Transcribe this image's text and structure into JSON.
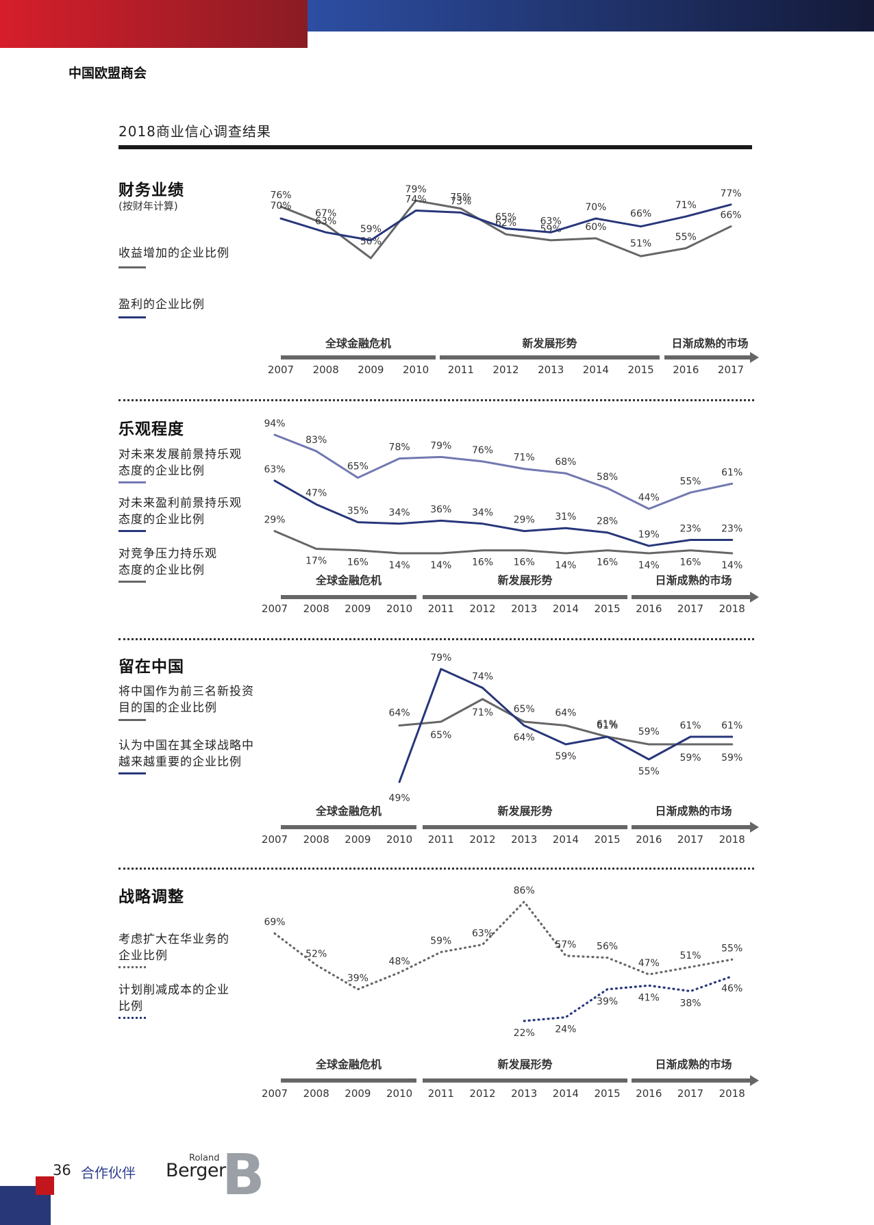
{
  "header": {
    "org": "中国欧盟商会",
    "page_title": "2018商业信心调查结果"
  },
  "colors": {
    "grey": "#666666",
    "navy": "#27367a",
    "lavender": "#7278b0",
    "red": "#d61e2b"
  },
  "chart_data": [
    {
      "type": "line",
      "title": "财务业绩",
      "subtitle": "(按财年计算)",
      "x": [
        "2007",
        "2008",
        "2009",
        "2010",
        "2011",
        "2012",
        "2013",
        "2014",
        "2015",
        "2016",
        "2017"
      ],
      "series": [
        {
          "name": "收益增加的企业比例",
          "color": "#666666",
          "values": [
            76,
            67,
            50,
            79,
            75,
            62,
            59,
            60,
            51,
            55,
            66
          ]
        },
        {
          "name": "盈利的企业比例",
          "color": "#27367a",
          "values": [
            70,
            63,
            59,
            74,
            73,
            65,
            63,
            70,
            66,
            71,
            77
          ]
        }
      ],
      "phases": [
        "全球金融危机",
        "新发展形势",
        "日渐成熟的市场"
      ]
    },
    {
      "type": "line",
      "title": "乐观程度",
      "x": [
        "2007",
        "2008",
        "2009",
        "2010",
        "2011",
        "2012",
        "2013",
        "2014",
        "2015",
        "2016",
        "2017",
        "2018"
      ],
      "series": [
        {
          "name": "对未来发展前景持乐观态度的企业比例",
          "color": "#7278b0",
          "values": [
            94,
            83,
            65,
            78,
            79,
            76,
            71,
            68,
            58,
            44,
            55,
            61
          ]
        },
        {
          "name": "对未来盈利前景持乐观态度的企业比例",
          "color": "#27367a",
          "values": [
            63,
            47,
            35,
            34,
            36,
            34,
            29,
            31,
            28,
            19,
            23,
            23
          ]
        },
        {
          "name": "对竞争压力持乐观态度的企业比例",
          "color": "#666666",
          "values": [
            29,
            17,
            16,
            14,
            14,
            16,
            16,
            14,
            16,
            14,
            16,
            14
          ]
        }
      ],
      "phases": [
        "全球金融危机",
        "新发展形势",
        "日渐成熟的市场"
      ]
    },
    {
      "type": "line",
      "title": "留在中国",
      "x": [
        "2007",
        "2008",
        "2009",
        "2010",
        "2011",
        "2012",
        "2013",
        "2014",
        "2015",
        "2016",
        "2017",
        "2018"
      ],
      "series": [
        {
          "name": "将中国作为前三名新投资目的国的企业比例",
          "color": "#666666",
          "values": [
            null,
            null,
            null,
            64,
            65,
            71,
            65,
            64,
            61,
            59,
            59,
            59
          ]
        },
        {
          "name": "认为中国在其全球战略中越来越重要的企业比例",
          "color": "#27367a",
          "values": [
            null,
            null,
            null,
            49,
            79,
            74,
            64,
            59,
            61,
            55,
            61,
            61
          ]
        }
      ],
      "phases": [
        "全球金融危机",
        "新发展形势",
        "日渐成熟的市场"
      ]
    },
    {
      "type": "line",
      "title": "战略调整",
      "x": [
        "2007",
        "2008",
        "2009",
        "2010",
        "2011",
        "2012",
        "2013",
        "2014",
        "2015",
        "2016",
        "2017",
        "2018"
      ],
      "series": [
        {
          "name": "考虑扩大在华业务的企业比例",
          "color": "#666666",
          "dotted": true,
          "values": [
            69,
            52,
            39,
            48,
            59,
            63,
            86,
            57,
            56,
            47,
            51,
            55
          ]
        },
        {
          "name": "计划削减成本的企业比例",
          "color": "#27367a",
          "dotted": true,
          "values": [
            null,
            null,
            null,
            null,
            null,
            null,
            22,
            24,
            39,
            41,
            38,
            46
          ]
        }
      ],
      "phases": [
        "全球金融危机",
        "新发展形势",
        "日渐成熟的市场"
      ]
    }
  ],
  "sections": [
    {
      "title": "财务业绩",
      "subtitle": "(按财年计算)",
      "legends": [
        [
          "收益增加的企业比例"
        ],
        [
          "盈利的企业比例"
        ]
      ]
    },
    {
      "title": "乐观程度",
      "legends": [
        [
          "对未来发展前景持乐观",
          "态度的企业比例"
        ],
        [
          "对未来盈利前景持乐观",
          "态度的企业比例"
        ],
        [
          "对竞争压力持乐观",
          "态度的企业比例"
        ]
      ]
    },
    {
      "title": "留在中国",
      "legends": [
        [
          "将中国作为前三名新投资",
          "目的国的企业比例"
        ],
        [
          "认为中国在其全球战略中",
          "越来越重要的企业比例"
        ]
      ]
    },
    {
      "title": "战略调整",
      "legends": [
        [
          "考虑扩大在华业务的",
          "企业比例"
        ],
        [
          "计划削减成本的企业",
          "比例"
        ]
      ]
    }
  ],
  "footer": {
    "page_number": "36",
    "page_label": "合作伙伴",
    "logo_top": "Roland",
    "logo_main": "Berger",
    "logo_mark": "B"
  }
}
